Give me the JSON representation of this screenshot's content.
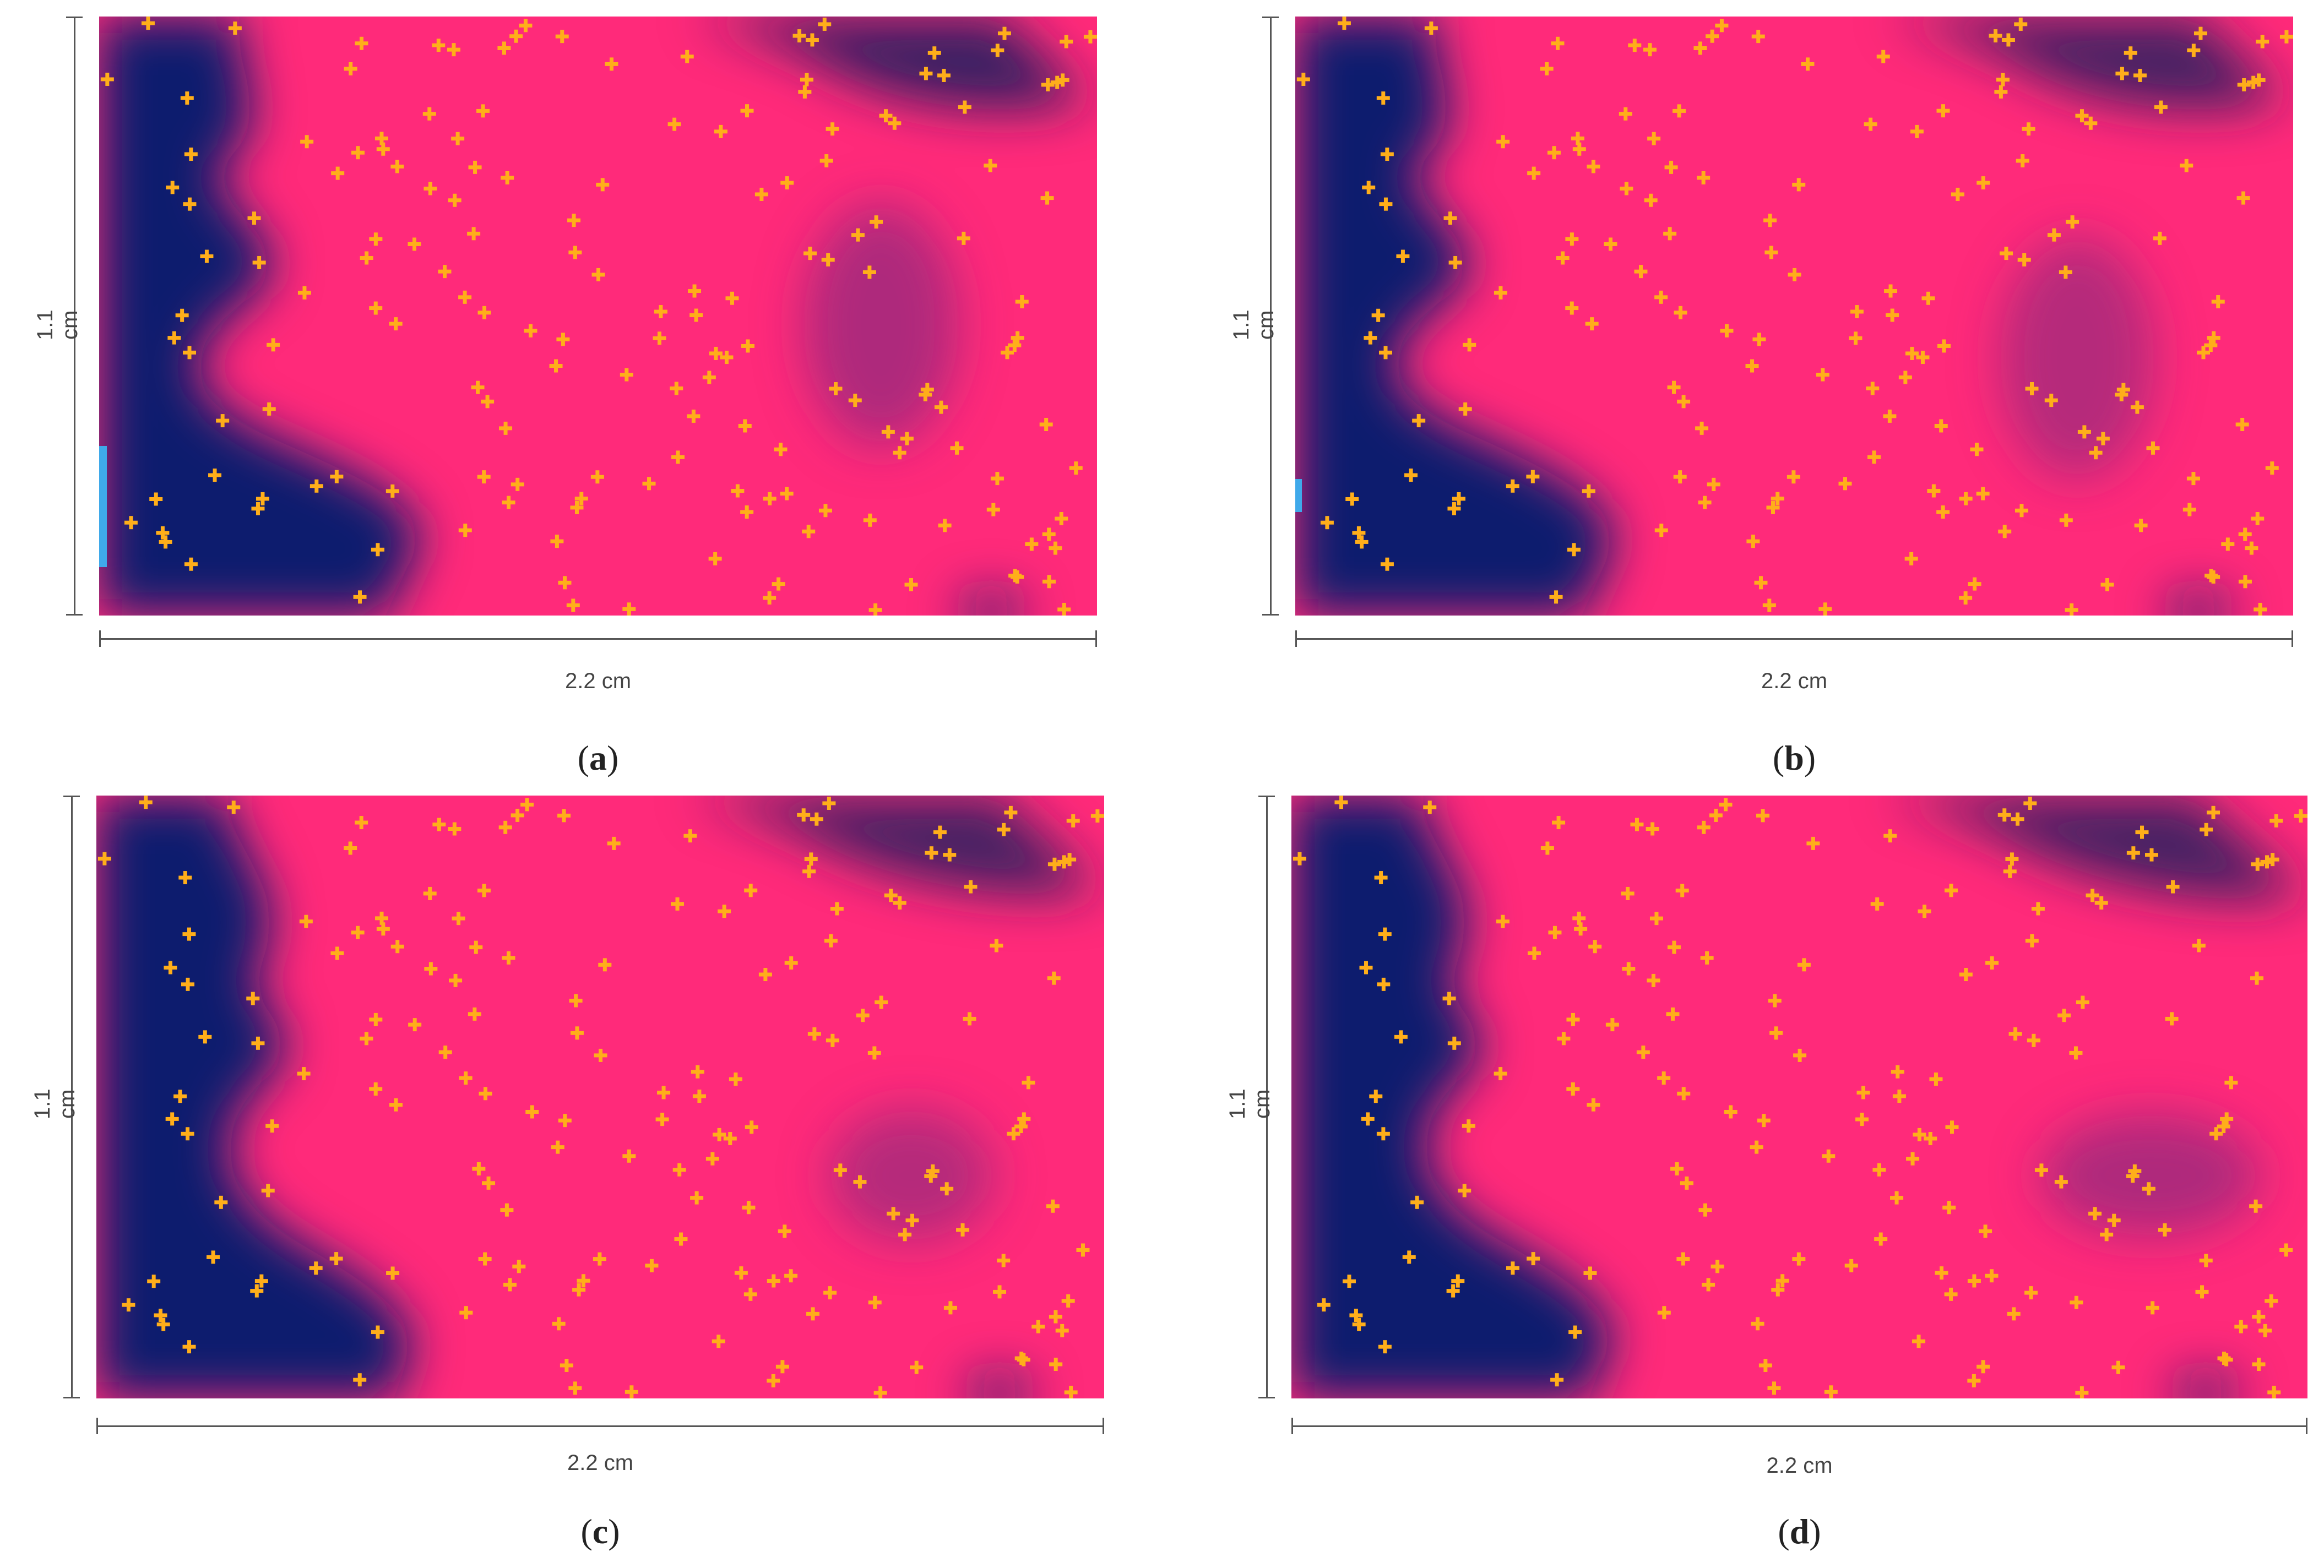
{
  "panels": [
    {
      "id": "a",
      "caption_letter": "a",
      "width_label": "2.2 cm",
      "height_label": "1.1 cm"
    },
    {
      "id": "b",
      "caption_letter": "b",
      "width_label": "2.2 cm",
      "height_label": "1.1 cm"
    },
    {
      "id": "c",
      "caption_letter": "c",
      "width_label": "2.2 cm",
      "height_label": "1.1 cm"
    },
    {
      "id": "d",
      "caption_letter": "d",
      "width_label": "2.2 cm",
      "height_label": "1.1 cm"
    }
  ],
  "colors": {
    "field_high": "#ff2a7a",
    "field_low": "#0b1f6e",
    "marker": "#ffae1a",
    "scale_bar": "#555555"
  },
  "marker_icon": "plus-marker-icon"
}
